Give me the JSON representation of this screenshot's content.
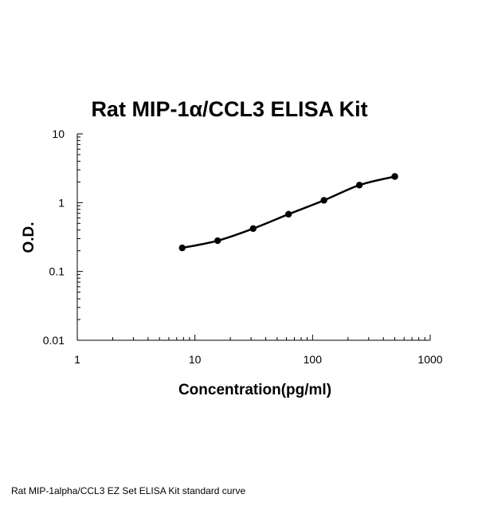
{
  "caption": "Rat MIP-1alpha/CCL3 EZ Set ELISA Kit standard curve",
  "chart_data": {
    "type": "line",
    "title": "Rat MIP-1α/CCL3 ELISA Kit",
    "xlabel": "Concentration(pg/ml)",
    "ylabel": "O.D.",
    "x_scale": "log",
    "y_scale": "log",
    "xlim": [
      1,
      1000
    ],
    "ylim": [
      0.01,
      10
    ],
    "x_ticks": [
      "1",
      "10",
      "100",
      "1000"
    ],
    "y_ticks": [
      "0.01",
      "0.1",
      "1",
      "10"
    ],
    "grid": false,
    "legend": "none",
    "series": [
      {
        "x": [
          7.8,
          15.6,
          31.25,
          62.5,
          125,
          250,
          500
        ],
        "y": [
          0.22,
          0.28,
          0.42,
          0.68,
          1.08,
          1.8,
          2.4
        ],
        "color": "#000000"
      }
    ]
  }
}
